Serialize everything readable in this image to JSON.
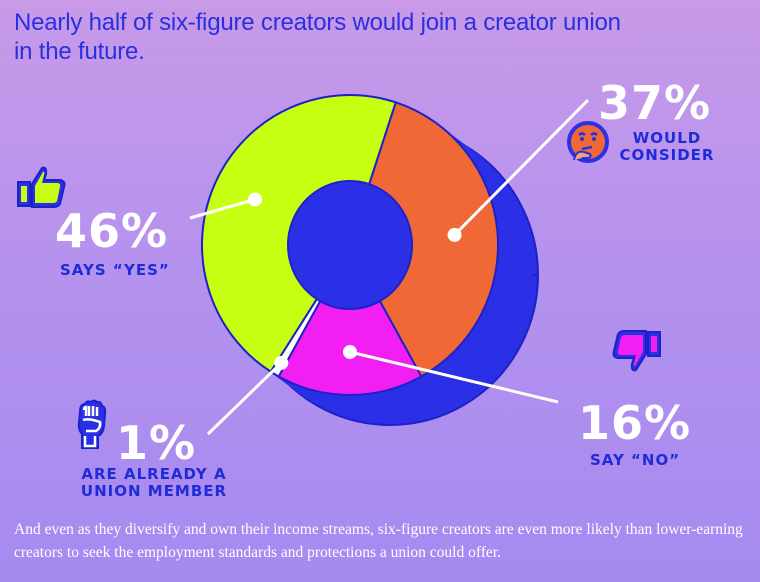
{
  "title": "Nearly half of six-figure creators would join a creator union in the future.",
  "chart_data": {
    "type": "pie",
    "donut": true,
    "slices": [
      {
        "label": "SAYS “YES”",
        "percent_text": "46%",
        "value": 46,
        "color": "#c6ff12"
      },
      {
        "label": "WOULD CONSIDER",
        "percent_text": "37%",
        "value": 37,
        "color": "#ef6836"
      },
      {
        "label": "SAY “NO”",
        "percent_text": "16%",
        "value": 16,
        "color": "#f21ff2"
      },
      {
        "label": "ARE ALREADY A UNION MEMBER",
        "percent_text": "1%",
        "value": 1,
        "color": "#ffffff"
      }
    ]
  },
  "labels": {
    "yes": {
      "pct": "46%",
      "text": "SAYS “YES”"
    },
    "consider": {
      "pct": "37%",
      "line1": "WOULD",
      "line2": "CONSIDER"
    },
    "no": {
      "pct": "16%",
      "text": "SAY “NO”"
    },
    "member": {
      "pct": "1%",
      "line1": "ARE ALREADY A",
      "line2": "UNION MEMBER"
    }
  },
  "icons": {
    "yes": "thumbs-up-icon",
    "consider": "thinking-face-icon",
    "no": "thumbs-down-icon",
    "member": "raised-fist-icon"
  },
  "colors": {
    "side": "#2b2fe6",
    "outline": "#1b22c8",
    "title": "#2a2fe0",
    "label": "#1f2bd6"
  },
  "footer": "And even as they diversify and own their income streams, six-figure creators are even more likely than lower-earning creators to seek the employment standards and protections a union could offer."
}
